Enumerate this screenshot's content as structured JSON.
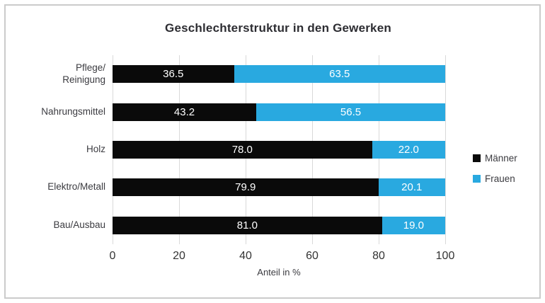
{
  "title": "Geschlechterstruktur in den Gewerken",
  "colors": {
    "maenner": "#0a0a0a",
    "frauen": "#29a9e0",
    "gridline": "#d9d9d9",
    "frame_border": "#cbcbcb",
    "text": "#3b3b40",
    "bar_value_text": "#ffffff"
  },
  "legend": {
    "items": [
      {
        "label": "Männer",
        "color": "#0a0a0a"
      },
      {
        "label": "Frauen",
        "color": "#29a9e0"
      }
    ]
  },
  "chart_data": {
    "type": "bar",
    "orientation": "horizontal",
    "stacked": true,
    "title": "Geschlechterstruktur in den Gewerken",
    "xlabel": "Anteil in %",
    "ylabel": "",
    "xlim": [
      0,
      100
    ],
    "xticks": [
      0,
      20,
      40,
      60,
      80,
      100
    ],
    "grid": "vertical",
    "legend_position": "right",
    "categories": [
      "Pflege/\nReinigung",
      "Nahrungsmittel",
      "Holz",
      "Elektro/Metall",
      "Bau/Ausbau"
    ],
    "series": [
      {
        "name": "Männer",
        "color": "#0a0a0a",
        "values": [
          36.5,
          43.2,
          78.0,
          79.9,
          81.0
        ],
        "labels": [
          "36.5",
          "43.2",
          "78.0",
          "79.9",
          "81.0"
        ]
      },
      {
        "name": "Frauen",
        "color": "#29a9e0",
        "values": [
          63.5,
          56.5,
          22.0,
          20.1,
          19.0
        ],
        "labels": [
          "63.5",
          "56.5",
          "22.0",
          "20.1",
          "19.0"
        ]
      }
    ]
  }
}
